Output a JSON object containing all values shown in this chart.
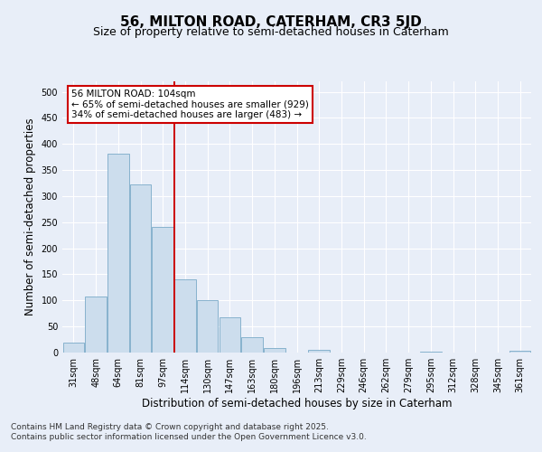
{
  "title": "56, MILTON ROAD, CATERHAM, CR3 5JD",
  "subtitle": "Size of property relative to semi-detached houses in Caterham",
  "xlabel": "Distribution of semi-detached houses by size in Caterham",
  "ylabel": "Number of semi-detached properties",
  "categories": [
    "31sqm",
    "48sqm",
    "64sqm",
    "81sqm",
    "97sqm",
    "114sqm",
    "130sqm",
    "147sqm",
    "163sqm",
    "180sqm",
    "196sqm",
    "213sqm",
    "229sqm",
    "246sqm",
    "262sqm",
    "279sqm",
    "295sqm",
    "312sqm",
    "328sqm",
    "345sqm",
    "361sqm"
  ],
  "values": [
    19,
    108,
    382,
    323,
    241,
    140,
    101,
    68,
    29,
    9,
    0,
    6,
    0,
    0,
    0,
    0,
    2,
    0,
    0,
    0,
    3
  ],
  "bar_color": "#ccdded",
  "bar_edge_color": "#7aaac8",
  "vline_x": 4.5,
  "vline_color": "#cc0000",
  "annotation_text": "56 MILTON ROAD: 104sqm\n← 65% of semi-detached houses are smaller (929)\n34% of semi-detached houses are larger (483) →",
  "annotation_box_color": "#ffffff",
  "annotation_box_edge_color": "#cc0000",
  "footer_text": "Contains HM Land Registry data © Crown copyright and database right 2025.\nContains public sector information licensed under the Open Government Licence v3.0.",
  "ylim": [
    0,
    520
  ],
  "yticks": [
    0,
    50,
    100,
    150,
    200,
    250,
    300,
    350,
    400,
    450,
    500
  ],
  "background_color": "#e8eef8",
  "plot_bg_color": "#e8eef8",
  "grid_color": "#ffffff",
  "title_fontsize": 11,
  "subtitle_fontsize": 9,
  "tick_fontsize": 7,
  "label_fontsize": 8.5,
  "footer_fontsize": 6.5,
  "ann_fontsize": 7.5
}
